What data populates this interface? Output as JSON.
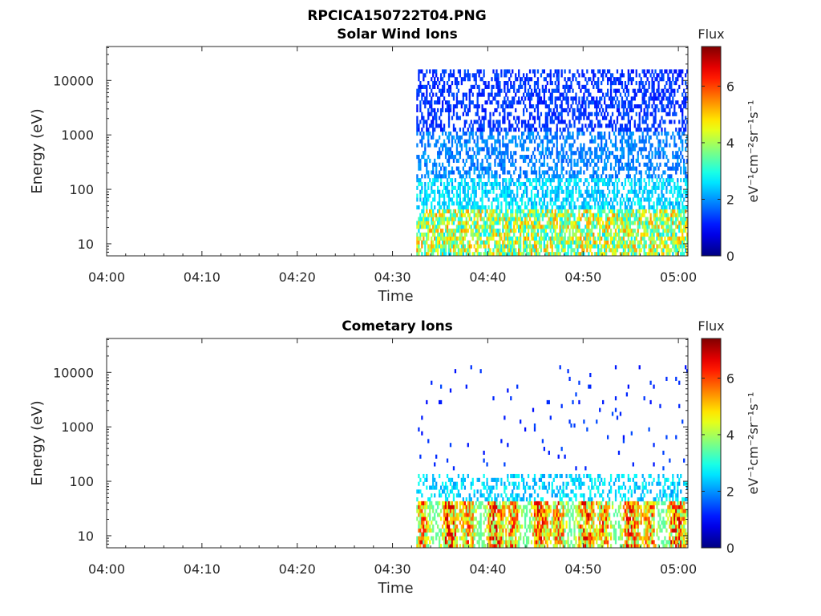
{
  "figure": {
    "title": "RPCICA150722T04.PNG"
  },
  "chart_data": [
    {
      "type": "heatmap",
      "title": "Solar Wind Ions",
      "xlabel": "Time",
      "ylabel": "Energy (eV)",
      "x_ticks": [
        "04:00",
        "04:10",
        "04:20",
        "04:30",
        "04:40",
        "04:50",
        "05:00"
      ],
      "x_range_minutes": [
        0,
        61
      ],
      "y_scale": "log",
      "y_ticks": [
        10,
        100,
        1000,
        10000
      ],
      "y_tick_labels": [
        "10",
        "100",
        "1000",
        "10000"
      ],
      "y_range": [
        6,
        42000
      ],
      "data_start_minute": 32.5,
      "data_end_minute": 61,
      "description_flux_by_energy_band": [
        {
          "energy_min": 6,
          "energy_max": 40,
          "flux_min": 2.5,
          "flux_max": 5.5
        },
        {
          "energy_min": 40,
          "energy_max": 150,
          "flux_min": 2.0,
          "flux_max": 3.0
        },
        {
          "energy_min": 150,
          "energy_max": 1000,
          "flux_min": 1.5,
          "flux_max": 2.2
        },
        {
          "energy_min": 1000,
          "energy_max": 16000,
          "flux_min": 1.0,
          "flux_max": 1.6
        }
      ],
      "colorbar": {
        "title": "Flux",
        "label": "eV⁻¹cm⁻²sr⁻¹s⁻¹",
        "range": [
          0,
          7.4
        ],
        "ticks": [
          0,
          2,
          4,
          6
        ],
        "colormap": "jet"
      }
    },
    {
      "type": "heatmap",
      "title": "Cometary Ions",
      "xlabel": "Time",
      "ylabel": "Energy (eV)",
      "x_ticks": [
        "04:00",
        "04:10",
        "04:20",
        "04:30",
        "04:40",
        "04:50",
        "05:00"
      ],
      "x_range_minutes": [
        0,
        61
      ],
      "y_scale": "log",
      "y_ticks": [
        10,
        100,
        1000,
        10000
      ],
      "y_tick_labels": [
        "10",
        "100",
        "1000",
        "10000"
      ],
      "y_range": [
        6,
        42000
      ],
      "data_start_minute": 32.5,
      "data_end_minute": 61,
      "description_flux_by_energy_band": [
        {
          "energy_min": 6,
          "energy_max": 40,
          "flux_min": 2.5,
          "flux_max": 6.8
        },
        {
          "energy_min": 40,
          "energy_max": 120,
          "flux_min": 2.0,
          "flux_max": 3.0
        },
        {
          "energy_min": 120,
          "energy_max": 12000,
          "flux_min": 1.0,
          "flux_max": 1.5
        }
      ],
      "colorbar": {
        "title": "Flux",
        "label": "eV⁻¹cm⁻²sr⁻¹s⁻¹",
        "range": [
          0,
          7.4
        ],
        "ticks": [
          0,
          2,
          4,
          6
        ],
        "colormap": "jet"
      }
    }
  ]
}
